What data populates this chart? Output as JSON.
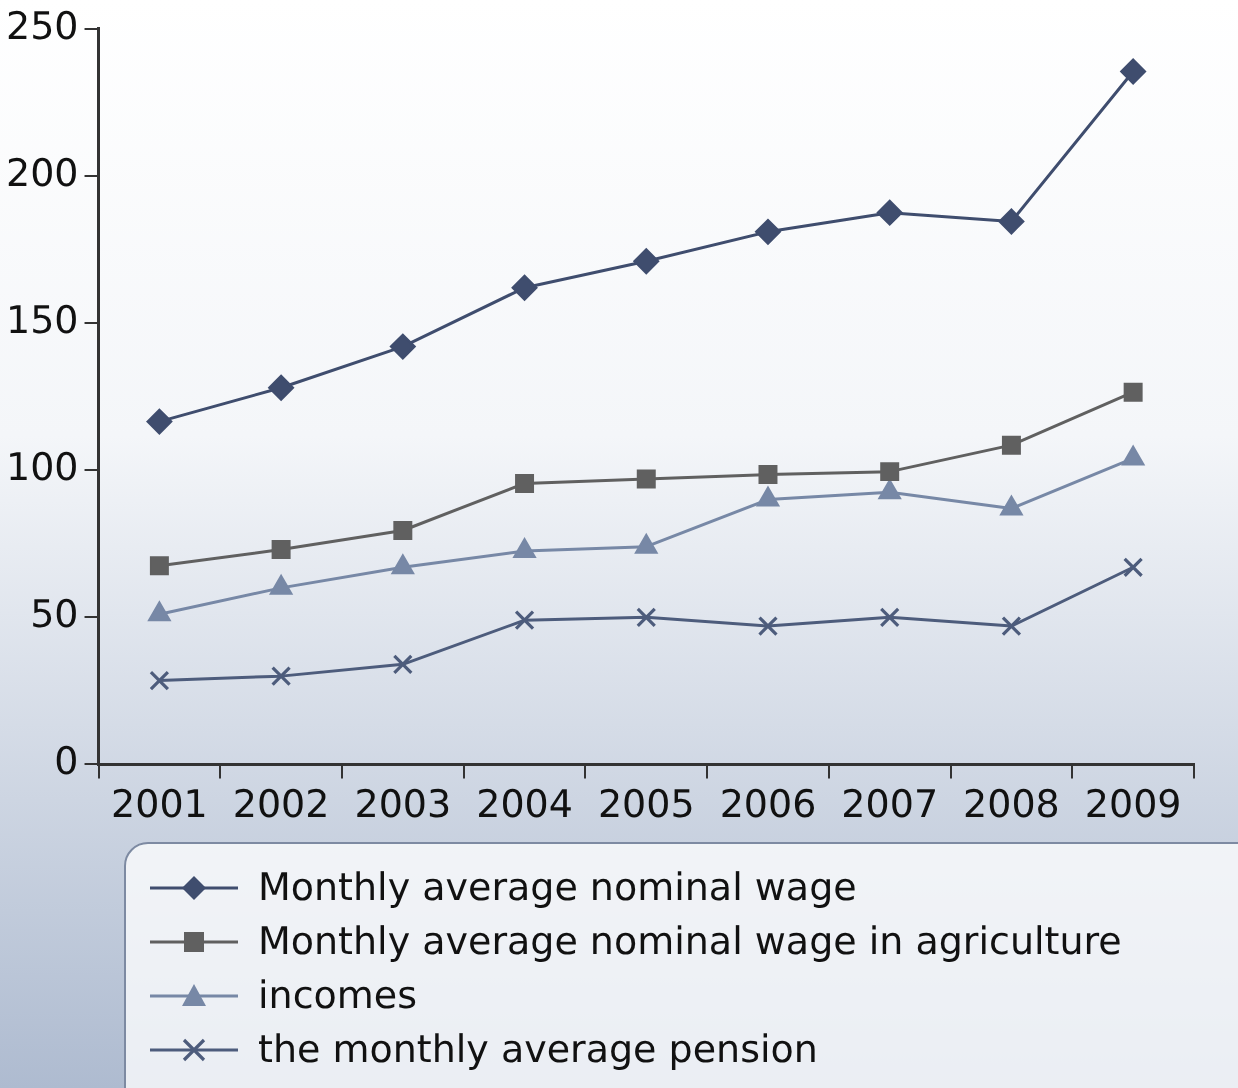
{
  "chart_data": {
    "type": "line",
    "categories": [
      "2001",
      "2002",
      "2003",
      "2004",
      "2005",
      "2006",
      "2007",
      "2008",
      "2009"
    ],
    "ylim": [
      0,
      250
    ],
    "yticks": [
      0,
      50,
      100,
      150,
      200,
      250
    ],
    "legend": "bottom",
    "series": [
      {
        "name": "Monthly average nominal wage",
        "color": "#3f4d6e",
        "marker": "diamond",
        "values": [
          116.5,
          128,
          142,
          162,
          171,
          181,
          187.5,
          184.5,
          235.5
        ]
      },
      {
        "name": "Monthly average nominal wage in agriculture",
        "color": "#606060",
        "marker": "square",
        "values": [
          67.5,
          73,
          79.5,
          95.5,
          97,
          98.5,
          99.5,
          108.5,
          126.5
        ]
      },
      {
        "name": "incomes",
        "color": "#7788a6",
        "marker": "triangle",
        "values": [
          51,
          60,
          67,
          72.5,
          74,
          90,
          92.5,
          87,
          104
        ]
      },
      {
        "name": "the monthly average pension",
        "color": "#4d5c7c",
        "marker": "cross",
        "values": [
          28.5,
          30,
          34,
          49,
          50,
          47,
          50,
          47,
          67
        ]
      }
    ]
  }
}
